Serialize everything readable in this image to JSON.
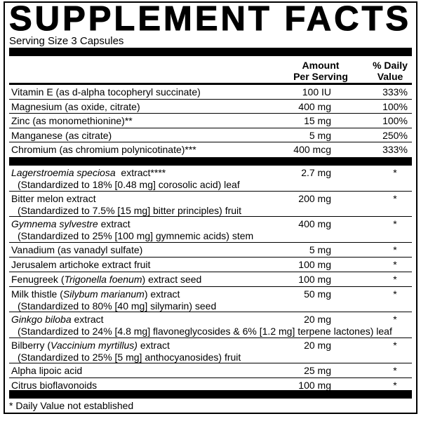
{
  "title": "SUPPLEMENT FACTS",
  "serving_size": "Serving Size 3 Capsules",
  "headers": {
    "amount_line1": "Amount",
    "amount_line2": "Per Serving",
    "dv_line1": "% Daily",
    "dv_line2": "Value"
  },
  "section1": [
    {
      "name": [
        {
          "t": "Vitamin E (as d-alpha tocopheryl succinate)"
        }
      ],
      "amount": "100 IU",
      "dv": "333%"
    },
    {
      "name": [
        {
          "t": "Magnesium (as oxide, citrate)"
        }
      ],
      "amount": "400 mg",
      "dv": "100%"
    },
    {
      "name": [
        {
          "t": "Zinc (as monomethionine)**"
        }
      ],
      "amount": "15 mg",
      "dv": "100%"
    },
    {
      "name": [
        {
          "t": "Manganese (as citrate)"
        }
      ],
      "amount": "5 mg",
      "dv": "250%"
    },
    {
      "name": [
        {
          "t": "Chromium (as chromium polynicotinate)***"
        }
      ],
      "amount": "400 mcg",
      "dv": "333%"
    }
  ],
  "section2": [
    {
      "name": [
        {
          "t": "Lagerstroemia speciosa",
          "i": true
        },
        {
          "t": "  extract****"
        }
      ],
      "sub": "(Standardized to 18% [0.48 mg] corosolic acid) leaf",
      "amount": "2.7 mg",
      "dv": "*"
    },
    {
      "name": [
        {
          "t": "Bitter melon extract"
        }
      ],
      "sub": "(Standardized to 7.5% [15 mg] bitter principles) fruit",
      "amount": "200 mg",
      "dv": "*"
    },
    {
      "name": [
        {
          "t": "Gymnema sylvestre",
          "i": true
        },
        {
          "t": " extract"
        }
      ],
      "sub": "(Standardized to 25% [100 mg] gymnemic acids) stem",
      "amount": "400 mg",
      "dv": "*"
    },
    {
      "name": [
        {
          "t": "Vanadium (as vanadyl sulfate)"
        }
      ],
      "amount": "5 mg",
      "dv": "*"
    },
    {
      "name": [
        {
          "t": "Jerusalem artichoke extract fruit"
        }
      ],
      "amount": "100 mg",
      "dv": "*"
    },
    {
      "name": [
        {
          "t": "Fenugreek ("
        },
        {
          "t": "Trigonella foenum",
          "i": true
        },
        {
          "t": ") extract seed"
        }
      ],
      "amount": "100 mg",
      "dv": "*"
    },
    {
      "name": [
        {
          "t": "Milk thistle ("
        },
        {
          "t": "Silybum marianum",
          "i": true
        },
        {
          "t": ") extract"
        }
      ],
      "sub": "(Standardized to 80% [40 mg] silymarin) seed",
      "amount": "50 mg",
      "dv": "*"
    },
    {
      "name": [
        {
          "t": "Ginkgo biloba",
          "i": true
        },
        {
          "t": " extract"
        }
      ],
      "sub": "(Standardized to 24% [4.8 mg] flavoneglycosides & 6% [1.2 mg] terpene lactones) leaf",
      "amount": "20 mg",
      "dv": "*"
    },
    {
      "name": [
        {
          "t": "Bilberry ("
        },
        {
          "t": "Vaccinium myrtillus)",
          "i": true
        },
        {
          "t": " extract"
        }
      ],
      "sub": "(Standardized to 25% [5 mg] anthocyanosides) fruit",
      "amount": "20 mg",
      "dv": "*"
    },
    {
      "name": [
        {
          "t": "Alpha lipoic acid"
        }
      ],
      "amount": "25 mg",
      "dv": "*"
    },
    {
      "name": [
        {
          "t": "Citrus bioflavonoids"
        }
      ],
      "amount": "100 mg",
      "dv": "*"
    }
  ],
  "footnote": "* Daily Value not established"
}
